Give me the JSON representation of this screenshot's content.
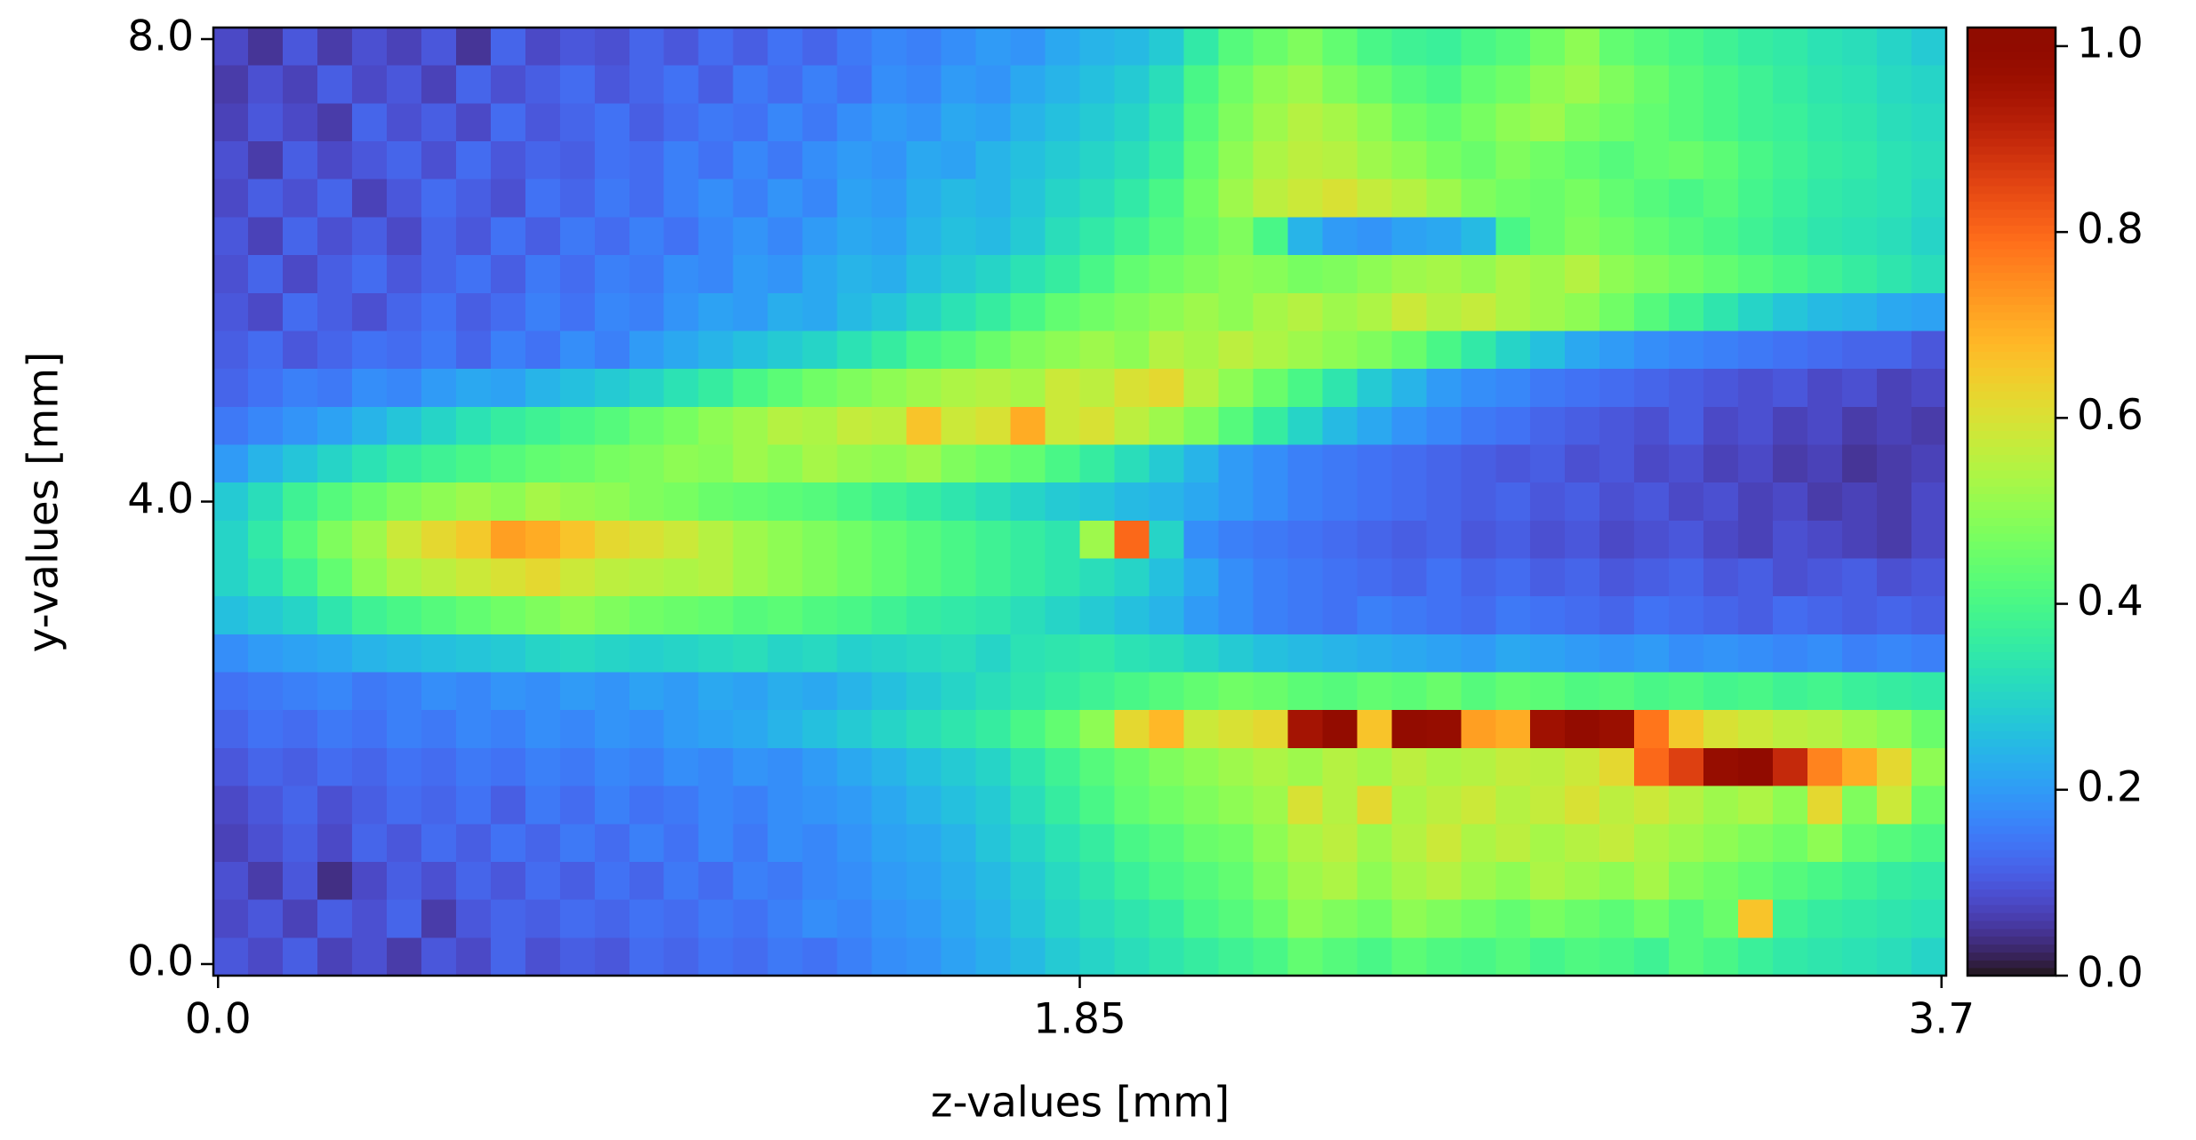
{
  "chart_data": {
    "type": "heatmap",
    "xlabel": "z-values [mm]",
    "ylabel": "y-values [mm]",
    "xlim": [
      -0.01,
      3.71
    ],
    "ylim": [
      -0.1,
      8.1
    ],
    "xticks": [
      {
        "value": 0,
        "label": "0.0"
      },
      1.85,
      {
        "value": 3.7,
        "label": "3.7"
      }
    ],
    "yticks": [
      {
        "value": 0,
        "label": "0.0"
      },
      {
        "value": 4,
        "label": "4.0"
      },
      {
        "value": 8,
        "label": "8.0"
      }
    ],
    "colormap": "turbo",
    "clim": [
      0,
      1.02
    ],
    "cticks": [
      {
        "value": 0,
        "label": "0.0"
      },
      {
        "value": 0.2,
        "label": "0.2"
      },
      {
        "value": 0.4,
        "label": "0.4"
      },
      {
        "value": 0.6,
        "label": "0.6"
      },
      {
        "value": 0.8,
        "label": "0.8"
      },
      {
        "value": 1,
        "label": "1.0"
      }
    ],
    "z": [
      [
        0.08,
        0.05,
        0.1,
        0.06,
        0.09,
        0.07,
        0.1,
        0.05,
        0.12,
        0.08,
        0.1,
        0.09,
        0.12,
        0.1,
        0.13,
        0.11,
        0.14,
        0.12,
        0.15,
        0.17,
        0.16,
        0.18,
        0.2,
        0.19,
        0.22,
        0.24,
        0.25,
        0.28,
        0.35,
        0.42,
        0.45,
        0.48,
        0.44,
        0.4,
        0.38,
        0.37,
        0.4,
        0.42,
        0.46,
        0.5,
        0.44,
        0.42,
        0.4,
        0.38,
        0.36,
        0.35,
        0.33,
        0.32,
        0.3,
        0.28
      ],
      [
        0.06,
        0.09,
        0.07,
        0.11,
        0.08,
        0.1,
        0.07,
        0.12,
        0.09,
        0.11,
        0.13,
        0.1,
        0.12,
        0.14,
        0.11,
        0.15,
        0.13,
        0.16,
        0.14,
        0.18,
        0.17,
        0.2,
        0.19,
        0.22,
        0.24,
        0.26,
        0.28,
        0.32,
        0.4,
        0.46,
        0.5,
        0.52,
        0.48,
        0.45,
        0.42,
        0.4,
        0.44,
        0.46,
        0.5,
        0.52,
        0.48,
        0.45,
        0.42,
        0.4,
        0.38,
        0.36,
        0.34,
        0.33,
        0.31,
        0.3
      ],
      [
        0.07,
        0.1,
        0.08,
        0.06,
        0.12,
        0.09,
        0.11,
        0.08,
        0.13,
        0.1,
        0.12,
        0.14,
        0.11,
        0.13,
        0.15,
        0.14,
        0.17,
        0.15,
        0.18,
        0.2,
        0.19,
        0.22,
        0.21,
        0.24,
        0.26,
        0.28,
        0.3,
        0.34,
        0.42,
        0.48,
        0.52,
        0.55,
        0.53,
        0.5,
        0.46,
        0.44,
        0.47,
        0.5,
        0.52,
        0.48,
        0.46,
        0.44,
        0.42,
        0.4,
        0.38,
        0.37,
        0.35,
        0.34,
        0.32,
        0.31
      ],
      [
        0.09,
        0.06,
        0.11,
        0.08,
        0.1,
        0.12,
        0.09,
        0.13,
        0.1,
        0.12,
        0.11,
        0.14,
        0.13,
        0.16,
        0.14,
        0.17,
        0.15,
        0.18,
        0.2,
        0.19,
        0.22,
        0.21,
        0.24,
        0.26,
        0.28,
        0.3,
        0.32,
        0.36,
        0.44,
        0.5,
        0.54,
        0.56,
        0.55,
        0.52,
        0.5,
        0.47,
        0.45,
        0.48,
        0.46,
        0.44,
        0.42,
        0.44,
        0.45,
        0.43,
        0.4,
        0.38,
        0.36,
        0.35,
        0.33,
        0.32
      ],
      [
        0.08,
        0.11,
        0.09,
        0.12,
        0.07,
        0.1,
        0.13,
        0.11,
        0.09,
        0.14,
        0.12,
        0.15,
        0.13,
        0.16,
        0.18,
        0.16,
        0.19,
        0.17,
        0.21,
        0.2,
        0.23,
        0.25,
        0.24,
        0.27,
        0.3,
        0.32,
        0.35,
        0.4,
        0.46,
        0.52,
        0.56,
        0.58,
        0.6,
        0.57,
        0.55,
        0.52,
        0.48,
        0.46,
        0.45,
        0.47,
        0.44,
        0.42,
        0.4,
        0.42,
        0.39,
        0.37,
        0.35,
        0.34,
        0.33,
        0.31
      ],
      [
        0.1,
        0.07,
        0.12,
        0.09,
        0.11,
        0.08,
        0.12,
        0.1,
        0.14,
        0.11,
        0.15,
        0.13,
        0.16,
        0.14,
        0.17,
        0.19,
        0.17,
        0.2,
        0.22,
        0.21,
        0.24,
        0.26,
        0.25,
        0.28,
        0.32,
        0.35,
        0.38,
        0.42,
        0.45,
        0.48,
        0.4,
        0.24,
        0.2,
        0.19,
        0.21,
        0.22,
        0.25,
        0.4,
        0.45,
        0.48,
        0.46,
        0.44,
        0.42,
        0.4,
        0.38,
        0.36,
        0.34,
        0.33,
        0.32,
        0.3
      ],
      [
        0.09,
        0.12,
        0.08,
        0.11,
        0.13,
        0.1,
        0.12,
        0.14,
        0.11,
        0.15,
        0.13,
        0.16,
        0.15,
        0.18,
        0.17,
        0.2,
        0.19,
        0.22,
        0.24,
        0.23,
        0.26,
        0.28,
        0.3,
        0.33,
        0.36,
        0.4,
        0.44,
        0.46,
        0.48,
        0.5,
        0.49,
        0.47,
        0.48,
        0.5,
        0.52,
        0.53,
        0.51,
        0.54,
        0.52,
        0.55,
        0.5,
        0.48,
        0.46,
        0.44,
        0.42,
        0.4,
        0.38,
        0.36,
        0.34,
        0.32
      ],
      [
        0.1,
        0.08,
        0.13,
        0.11,
        0.09,
        0.12,
        0.14,
        0.11,
        0.13,
        0.16,
        0.14,
        0.17,
        0.16,
        0.19,
        0.21,
        0.2,
        0.23,
        0.22,
        0.25,
        0.27,
        0.3,
        0.33,
        0.36,
        0.4,
        0.44,
        0.46,
        0.48,
        0.5,
        0.52,
        0.5,
        0.53,
        0.55,
        0.52,
        0.54,
        0.58,
        0.55,
        0.57,
        0.54,
        0.52,
        0.5,
        0.46,
        0.42,
        0.38,
        0.34,
        0.3,
        0.27,
        0.25,
        0.24,
        0.22,
        0.21
      ],
      [
        0.11,
        0.13,
        0.1,
        0.12,
        0.14,
        0.13,
        0.15,
        0.12,
        0.16,
        0.14,
        0.18,
        0.16,
        0.2,
        0.22,
        0.24,
        0.26,
        0.28,
        0.3,
        0.33,
        0.36,
        0.4,
        0.42,
        0.45,
        0.48,
        0.5,
        0.52,
        0.5,
        0.55,
        0.53,
        0.56,
        0.54,
        0.52,
        0.5,
        0.48,
        0.45,
        0.4,
        0.35,
        0.3,
        0.26,
        0.22,
        0.2,
        0.18,
        0.17,
        0.16,
        0.15,
        0.14,
        0.13,
        0.12,
        0.12,
        0.1
      ],
      [
        0.12,
        0.14,
        0.16,
        0.15,
        0.18,
        0.17,
        0.2,
        0.22,
        0.21,
        0.24,
        0.26,
        0.28,
        0.3,
        0.33,
        0.36,
        0.4,
        0.43,
        0.46,
        0.48,
        0.5,
        0.52,
        0.54,
        0.55,
        0.53,
        0.58,
        0.56,
        0.6,
        0.62,
        0.55,
        0.5,
        0.45,
        0.4,
        0.34,
        0.28,
        0.24,
        0.2,
        0.18,
        0.17,
        0.15,
        0.14,
        0.13,
        0.12,
        0.11,
        0.1,
        0.09,
        0.1,
        0.08,
        0.09,
        0.07,
        0.08
      ],
      [
        0.15,
        0.17,
        0.19,
        0.21,
        0.24,
        0.27,
        0.3,
        0.33,
        0.36,
        0.38,
        0.4,
        0.42,
        0.45,
        0.47,
        0.5,
        0.52,
        0.55,
        0.54,
        0.57,
        0.56,
        0.66,
        0.58,
        0.6,
        0.7,
        0.58,
        0.6,
        0.56,
        0.52,
        0.48,
        0.42,
        0.36,
        0.3,
        0.25,
        0.22,
        0.19,
        0.17,
        0.15,
        0.14,
        0.12,
        0.11,
        0.1,
        0.09,
        0.11,
        0.08,
        0.09,
        0.07,
        0.08,
        0.06,
        0.07,
        0.06
      ],
      [
        0.2,
        0.24,
        0.27,
        0.3,
        0.33,
        0.36,
        0.38,
        0.4,
        0.42,
        0.44,
        0.45,
        0.47,
        0.48,
        0.5,
        0.49,
        0.52,
        0.5,
        0.53,
        0.51,
        0.5,
        0.52,
        0.48,
        0.46,
        0.44,
        0.4,
        0.36,
        0.32,
        0.28,
        0.24,
        0.2,
        0.18,
        0.16,
        0.15,
        0.14,
        0.13,
        0.12,
        0.11,
        0.1,
        0.11,
        0.09,
        0.1,
        0.08,
        0.09,
        0.07,
        0.08,
        0.06,
        0.07,
        0.05,
        0.06,
        0.07
      ],
      [
        0.28,
        0.32,
        0.38,
        0.42,
        0.45,
        0.48,
        0.5,
        0.52,
        0.5,
        0.53,
        0.51,
        0.5,
        0.48,
        0.47,
        0.45,
        0.44,
        0.43,
        0.42,
        0.4,
        0.38,
        0.36,
        0.34,
        0.32,
        0.3,
        0.28,
        0.27,
        0.25,
        0.24,
        0.22,
        0.2,
        0.18,
        0.16,
        0.15,
        0.14,
        0.13,
        0.12,
        0.11,
        0.12,
        0.1,
        0.11,
        0.09,
        0.1,
        0.08,
        0.09,
        0.07,
        0.08,
        0.06,
        0.07,
        0.06,
        0.08
      ],
      [
        0.3,
        0.35,
        0.42,
        0.48,
        0.52,
        0.58,
        0.62,
        0.65,
        0.72,
        0.7,
        0.66,
        0.62,
        0.6,
        0.58,
        0.55,
        0.52,
        0.5,
        0.48,
        0.46,
        0.44,
        0.42,
        0.4,
        0.38,
        0.36,
        0.34,
        0.52,
        0.8,
        0.3,
        0.18,
        0.16,
        0.15,
        0.14,
        0.13,
        0.12,
        0.11,
        0.12,
        0.1,
        0.11,
        0.09,
        0.1,
        0.08,
        0.09,
        0.1,
        0.08,
        0.07,
        0.09,
        0.08,
        0.07,
        0.06,
        0.08
      ],
      [
        0.3,
        0.33,
        0.38,
        0.44,
        0.5,
        0.54,
        0.56,
        0.58,
        0.6,
        0.62,
        0.58,
        0.56,
        0.55,
        0.54,
        0.55,
        0.52,
        0.5,
        0.48,
        0.46,
        0.44,
        0.42,
        0.4,
        0.38,
        0.36,
        0.34,
        0.32,
        0.3,
        0.26,
        0.22,
        0.18,
        0.16,
        0.15,
        0.14,
        0.13,
        0.12,
        0.14,
        0.12,
        0.13,
        0.11,
        0.12,
        0.1,
        0.11,
        0.12,
        0.1,
        0.11,
        0.09,
        0.1,
        0.11,
        0.09,
        0.1
      ],
      [
        0.26,
        0.28,
        0.3,
        0.34,
        0.38,
        0.4,
        0.42,
        0.44,
        0.46,
        0.48,
        0.5,
        0.48,
        0.46,
        0.45,
        0.44,
        0.42,
        0.43,
        0.41,
        0.4,
        0.38,
        0.36,
        0.35,
        0.34,
        0.32,
        0.3,
        0.28,
        0.26,
        0.24,
        0.2,
        0.18,
        0.16,
        0.15,
        0.14,
        0.16,
        0.15,
        0.14,
        0.13,
        0.15,
        0.14,
        0.13,
        0.12,
        0.14,
        0.13,
        0.12,
        0.11,
        0.13,
        0.12,
        0.11,
        0.12,
        0.11
      ],
      [
        0.18,
        0.2,
        0.21,
        0.22,
        0.24,
        0.25,
        0.26,
        0.27,
        0.28,
        0.3,
        0.31,
        0.3,
        0.29,
        0.3,
        0.31,
        0.32,
        0.3,
        0.31,
        0.29,
        0.3,
        0.31,
        0.32,
        0.3,
        0.33,
        0.34,
        0.35,
        0.33,
        0.32,
        0.3,
        0.28,
        0.26,
        0.25,
        0.24,
        0.23,
        0.22,
        0.21,
        0.2,
        0.22,
        0.21,
        0.2,
        0.19,
        0.2,
        0.18,
        0.19,
        0.18,
        0.17,
        0.18,
        0.16,
        0.17,
        0.16
      ],
      [
        0.14,
        0.15,
        0.16,
        0.17,
        0.15,
        0.16,
        0.18,
        0.17,
        0.19,
        0.18,
        0.2,
        0.19,
        0.21,
        0.2,
        0.22,
        0.21,
        0.23,
        0.22,
        0.24,
        0.26,
        0.28,
        0.3,
        0.32,
        0.34,
        0.36,
        0.38,
        0.4,
        0.42,
        0.44,
        0.46,
        0.45,
        0.43,
        0.42,
        0.44,
        0.43,
        0.45,
        0.42,
        0.44,
        0.43,
        0.41,
        0.42,
        0.4,
        0.41,
        0.39,
        0.4,
        0.38,
        0.39,
        0.37,
        0.36,
        0.35
      ],
      [
        0.12,
        0.14,
        0.13,
        0.15,
        0.14,
        0.16,
        0.15,
        0.17,
        0.16,
        0.18,
        0.17,
        0.19,
        0.18,
        0.2,
        0.21,
        0.22,
        0.24,
        0.26,
        0.28,
        0.3,
        0.32,
        0.34,
        0.36,
        0.4,
        0.44,
        0.5,
        0.62,
        0.68,
        0.58,
        0.6,
        0.62,
        0.95,
        0.99,
        0.66,
        0.99,
        0.98,
        0.72,
        0.7,
        0.96,
        0.99,
        0.97,
        0.78,
        0.65,
        0.6,
        0.58,
        0.56,
        0.55,
        0.52,
        0.5,
        0.45
      ],
      [
        0.1,
        0.12,
        0.11,
        0.13,
        0.12,
        0.14,
        0.13,
        0.15,
        0.14,
        0.16,
        0.15,
        0.17,
        0.16,
        0.18,
        0.17,
        0.19,
        0.18,
        0.2,
        0.22,
        0.24,
        0.26,
        0.28,
        0.3,
        0.34,
        0.38,
        0.42,
        0.45,
        0.48,
        0.5,
        0.52,
        0.54,
        0.52,
        0.55,
        0.53,
        0.56,
        0.54,
        0.55,
        0.57,
        0.56,
        0.58,
        0.62,
        0.8,
        0.86,
        0.98,
        1.0,
        0.9,
        0.76,
        0.7,
        0.62,
        0.5
      ],
      [
        0.08,
        0.1,
        0.12,
        0.09,
        0.11,
        0.13,
        0.12,
        0.14,
        0.11,
        0.15,
        0.13,
        0.16,
        0.14,
        0.15,
        0.17,
        0.16,
        0.18,
        0.19,
        0.2,
        0.22,
        0.24,
        0.26,
        0.28,
        0.32,
        0.36,
        0.4,
        0.44,
        0.46,
        0.48,
        0.5,
        0.52,
        0.6,
        0.55,
        0.62,
        0.54,
        0.56,
        0.58,
        0.55,
        0.57,
        0.6,
        0.56,
        0.58,
        0.55,
        0.52,
        0.54,
        0.5,
        0.62,
        0.48,
        0.58,
        0.45
      ],
      [
        0.07,
        0.09,
        0.11,
        0.08,
        0.12,
        0.1,
        0.13,
        0.11,
        0.14,
        0.12,
        0.15,
        0.13,
        0.16,
        0.14,
        0.17,
        0.15,
        0.18,
        0.17,
        0.19,
        0.21,
        0.22,
        0.24,
        0.27,
        0.3,
        0.33,
        0.36,
        0.4,
        0.42,
        0.45,
        0.46,
        0.5,
        0.54,
        0.56,
        0.52,
        0.55,
        0.58,
        0.54,
        0.56,
        0.53,
        0.55,
        0.57,
        0.54,
        0.52,
        0.5,
        0.48,
        0.46,
        0.5,
        0.44,
        0.42,
        0.4
      ],
      [
        0.09,
        0.06,
        0.1,
        0.04,
        0.08,
        0.11,
        0.09,
        0.12,
        0.1,
        0.13,
        0.11,
        0.14,
        0.12,
        0.15,
        0.13,
        0.16,
        0.15,
        0.17,
        0.18,
        0.2,
        0.21,
        0.23,
        0.25,
        0.28,
        0.31,
        0.34,
        0.37,
        0.4,
        0.42,
        0.44,
        0.48,
        0.52,
        0.54,
        0.5,
        0.53,
        0.55,
        0.52,
        0.5,
        0.54,
        0.52,
        0.5,
        0.53,
        0.48,
        0.46,
        0.44,
        0.42,
        0.4,
        0.38,
        0.36,
        0.35
      ],
      [
        0.08,
        0.1,
        0.07,
        0.11,
        0.09,
        0.12,
        0.06,
        0.1,
        0.12,
        0.11,
        0.13,
        0.12,
        0.14,
        0.13,
        0.15,
        0.14,
        0.16,
        0.18,
        0.17,
        0.19,
        0.2,
        0.22,
        0.24,
        0.27,
        0.3,
        0.32,
        0.34,
        0.36,
        0.4,
        0.42,
        0.45,
        0.5,
        0.48,
        0.46,
        0.5,
        0.48,
        0.46,
        0.44,
        0.47,
        0.45,
        0.43,
        0.46,
        0.42,
        0.45,
        0.66,
        0.38,
        0.36,
        0.35,
        0.34,
        0.33
      ],
      [
        0.1,
        0.08,
        0.11,
        0.07,
        0.09,
        0.06,
        0.1,
        0.08,
        0.12,
        0.09,
        0.11,
        0.1,
        0.13,
        0.12,
        0.14,
        0.13,
        0.15,
        0.14,
        0.16,
        0.18,
        0.19,
        0.21,
        0.23,
        0.25,
        0.28,
        0.3,
        0.32,
        0.34,
        0.36,
        0.38,
        0.4,
        0.44,
        0.42,
        0.4,
        0.43,
        0.41,
        0.4,
        0.42,
        0.39,
        0.41,
        0.4,
        0.38,
        0.42,
        0.4,
        0.37,
        0.35,
        0.34,
        0.33,
        0.32,
        0.3
      ]
    ]
  }
}
